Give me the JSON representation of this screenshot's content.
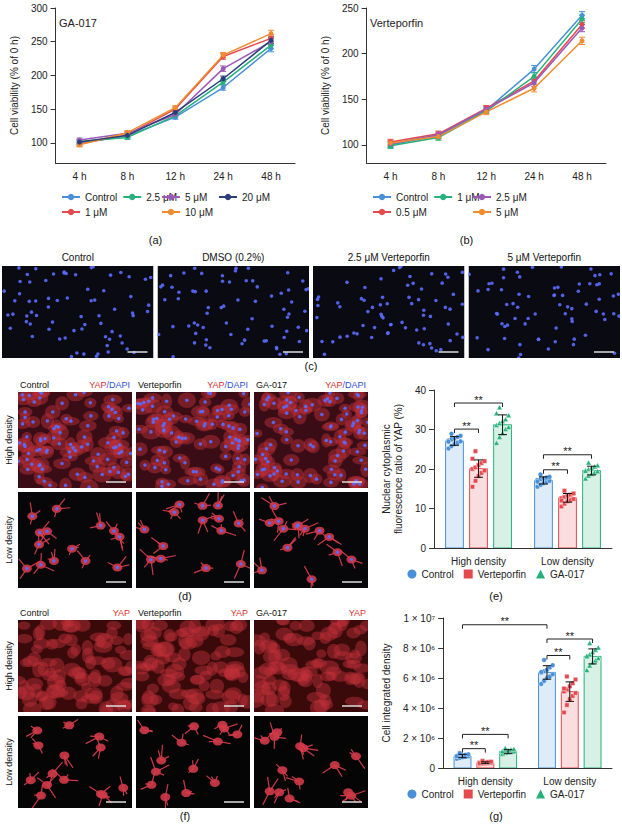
{
  "chart_data": [
    {
      "panel": "(a)",
      "type": "line",
      "title": "GA-017",
      "y_label": "Cell viability (% of 0 h)",
      "categories": [
        "4 h",
        "8 h",
        "12 h",
        "24 h",
        "48 h"
      ],
      "ylim": [
        70,
        300
      ],
      "yticks": [
        100,
        150,
        200,
        250,
        300
      ],
      "grid": false,
      "legend": "bottom",
      "marker": "circle",
      "series": [
        {
          "name": "Control",
          "color": "#4a90d9",
          "values": [
            100,
            110,
            138,
            182,
            240
          ],
          "errors": [
            3,
            3,
            3,
            4,
            5
          ]
        },
        {
          "name": "1 μM",
          "color": "#e5484d",
          "values": [
            98,
            112,
            150,
            228,
            255
          ],
          "errors": [
            3,
            3,
            3,
            4,
            5
          ]
        },
        {
          "name": "2.5 μM",
          "color": "#26b07a",
          "values": [
            102,
            108,
            140,
            190,
            245
          ],
          "errors": [
            3,
            3,
            3,
            4,
            5
          ]
        },
        {
          "name": "5 μM",
          "color": "#9b59b6",
          "values": [
            104,
            114,
            142,
            210,
            250
          ],
          "errors": [
            3,
            3,
            3,
            4,
            5
          ]
        },
        {
          "name": "10 μM",
          "color": "#f08c2e",
          "values": [
            97,
            115,
            152,
            230,
            262
          ],
          "errors": [
            3,
            3,
            3,
            4,
            5
          ]
        },
        {
          "name": "20 μM",
          "color": "#2c3e7a",
          "values": [
            101,
            111,
            145,
            195,
            252
          ],
          "errors": [
            3,
            3,
            3,
            4,
            5
          ]
        }
      ]
    },
    {
      "panel": "(b)",
      "type": "line",
      "title": "Verteporfin",
      "y_label": "Cell viability (% of 0 h)",
      "categories": [
        "4 h",
        "8 h",
        "12 h",
        "24 h",
        "48 h"
      ],
      "ylim": [
        80,
        250
      ],
      "yticks": [
        100,
        150,
        200,
        250
      ],
      "grid": false,
      "legend": "bottom",
      "marker": "circle",
      "series": [
        {
          "name": "Control",
          "color": "#4a90d9",
          "values": [
            100,
            110,
            138,
            183,
            242
          ],
          "errors": [
            3,
            3,
            3,
            4,
            4
          ]
        },
        {
          "name": "0.5 μM",
          "color": "#e5484d",
          "values": [
            103,
            112,
            140,
            170,
            232
          ],
          "errors": [
            3,
            3,
            3,
            4,
            4
          ]
        },
        {
          "name": "1 μM",
          "color": "#26b07a",
          "values": [
            99,
            108,
            137,
            175,
            238
          ],
          "errors": [
            3,
            3,
            3,
            4,
            4
          ]
        },
        {
          "name": "2.5 μM",
          "color": "#9b59b6",
          "values": [
            101,
            111,
            139,
            168,
            228
          ],
          "errors": [
            3,
            3,
            3,
            4,
            4
          ]
        },
        {
          "name": "5 μM",
          "color": "#f08c2e",
          "values": [
            102,
            109,
            136,
            162,
            214
          ],
          "errors": [
            3,
            3,
            3,
            4,
            4
          ]
        }
      ]
    },
    {
      "panel": "(e)",
      "type": "bar",
      "y_label": "Nuclear cytoplasmic fluorescence ratio of YAP (%)",
      "categories": [
        "High density",
        "Low density"
      ],
      "ylim": [
        0,
        40
      ],
      "yticks": [
        0,
        10,
        20,
        30,
        40
      ],
      "grid": false,
      "legend": "bottom",
      "series": [
        {
          "name": "Control",
          "color": "#4a90d9",
          "marker": "circle",
          "values": [
            27.1,
            17.1
          ],
          "errors": [
            1.1,
            0.9
          ],
          "points": [
            [
              25.2,
              25.8,
              26.3,
              26.6,
              27.0,
              27.2,
              27.5,
              27.8,
              28.1,
              28.4,
              26.9,
              28.9
            ],
            [
              15.5,
              16.0,
              16.4,
              16.7,
              17.0,
              17.2,
              17.4,
              17.6,
              17.8,
              18.0,
              16.8,
              18.6
            ]
          ]
        },
        {
          "name": "Verteporfin",
          "color": "#e5484d",
          "marker": "square",
          "values": [
            20.1,
            12.7
          ],
          "errors": [
            2.2,
            1.1
          ],
          "points": [
            [
              15.5,
              17.0,
              18.2,
              19.0,
              19.6,
              20.0,
              20.4,
              21.0,
              21.5,
              22.0,
              22.6,
              24.5
            ],
            [
              10.5,
              11.2,
              11.8,
              12.1,
              12.4,
              12.6,
              12.9,
              13.2,
              13.5,
              13.8,
              12.0,
              14.5
            ]
          ]
        },
        {
          "name": "GA-017",
          "color": "#26b07a",
          "marker": "triangle",
          "values": [
            31.2,
            19.6
          ],
          "errors": [
            2.5,
            1.1
          ],
          "points": [
            [
              26.5,
              28.0,
              29.0,
              30.0,
              30.5,
              31.0,
              31.5,
              32.0,
              32.5,
              33.5,
              34.0,
              35.5
            ],
            [
              17.5,
              18.2,
              18.7,
              19.0,
              19.3,
              19.6,
              19.9,
              20.2,
              20.5,
              20.8,
              19.4,
              21.5
            ]
          ]
        }
      ],
      "comparisons": [
        {
          "from": {
            "category": "High density",
            "series": "Control"
          },
          "to": {
            "category": "High density",
            "series": "Verteporfin"
          },
          "label": "**"
        },
        {
          "from": {
            "category": "High density",
            "series": "Control"
          },
          "to": {
            "category": "High density",
            "series": "GA-017"
          },
          "label": "**"
        },
        {
          "from": {
            "category": "Low density",
            "series": "Control"
          },
          "to": {
            "category": "Low density",
            "series": "Verteporfin"
          },
          "label": "**"
        },
        {
          "from": {
            "category": "Low density",
            "series": "Control"
          },
          "to": {
            "category": "Low density",
            "series": "GA-017"
          },
          "label": "**"
        }
      ]
    },
    {
      "panel": "(g)",
      "type": "bar",
      "y_label": "Cell integrated density",
      "categories": [
        "High density",
        "Low density"
      ],
      "ylim": [
        0,
        10000000
      ],
      "yticks": [
        0,
        {
          "value": 2000000,
          "label": "2 × 10⁶"
        },
        {
          "value": 4000000,
          "label": "4 × 10⁶"
        },
        {
          "value": 6000000,
          "label": "6 × 10⁶"
        },
        {
          "value": 8000000,
          "label": "8 × 10⁶"
        },
        {
          "value": 10000000,
          "label": "1 × 10⁷"
        }
      ],
      "grid": false,
      "legend": "bottom",
      "series": [
        {
          "name": "Control",
          "color": "#4a90d9",
          "marker": "circle",
          "values": [
            800000,
            6370000
          ],
          "errors": [
            110000,
            450000
          ],
          "points": [
            [
              620000,
              680000,
              720000,
              750000,
              780000,
              800000,
              820000,
              850000,
              880000,
              910000,
              790000,
              990000
            ],
            [
              5600000,
              5800000,
              6000000,
              6100000,
              6250000,
              6350000,
              6450000,
              6550000,
              6700000,
              6850000,
              6400000,
              7200000
            ]
          ]
        },
        {
          "name": "Verteporfin",
          "color": "#e5484d",
          "marker": "square",
          "values": [
            350000,
            5090000
          ],
          "errors": [
            60000,
            650000
          ],
          "points": [
            [
              250000,
              280000,
              300000,
              320000,
              340000,
              350000,
              360000,
              380000,
              400000,
              420000,
              330000,
              470000
            ],
            [
              3700000,
              4200000,
              4600000,
              4800000,
              5000000,
              5100000,
              5250000,
              5450000,
              5650000,
              5900000,
              5300000,
              6100000
            ]
          ]
        },
        {
          "name": "GA-017",
          "color": "#26b07a",
          "marker": "triangle",
          "values": [
            1100000,
            7440000
          ],
          "errors": [
            120000,
            500000
          ],
          "points": [
            [
              900000,
              960000,
              1000000,
              1040000,
              1080000,
              1100000,
              1130000,
              1160000,
              1200000,
              1240000,
              1090000,
              1300000
            ],
            [
              6500000,
              6800000,
              7000000,
              7150000,
              7300000,
              7400000,
              7550000,
              7700000,
              7850000,
              8000000,
              7450000,
              8300000
            ]
          ]
        }
      ],
      "comparisons": [
        {
          "from": {
            "category": "High density",
            "series": "Control"
          },
          "to": {
            "category": "High density",
            "series": "Verteporfin"
          },
          "label": "**"
        },
        {
          "from": {
            "category": "High density",
            "series": "Control"
          },
          "to": {
            "category": "High density",
            "series": "GA-017"
          },
          "label": "**"
        },
        {
          "from": {
            "category": "Low density",
            "series": "Control"
          },
          "to": {
            "category": "Low density",
            "series": "Verteporfin"
          },
          "label": "**"
        },
        {
          "from": {
            "category": "Low density",
            "series": "Control"
          },
          "to": {
            "category": "Low density",
            "series": "GA-017"
          },
          "label": "**"
        },
        {
          "from": {
            "category": "High density",
            "series": "Control"
          },
          "to": {
            "category": "Low density",
            "series": "Control"
          },
          "label": "**"
        }
      ]
    }
  ],
  "image_panels": [
    {
      "panel": "(c)",
      "columns": [
        "Control",
        "DMSO (0.2%)",
        "2.5 μM Verteporfin",
        "5 μM Verteporfin"
      ]
    },
    {
      "panel": "(d)",
      "columns": [
        "Control",
        "Verteporfin",
        "GA-017"
      ],
      "stain": "YAP/DAPI",
      "rows": [
        "High density",
        "Low density"
      ]
    },
    {
      "panel": "(f)",
      "columns": [
        "Control",
        "Verteporfin",
        "GA-017"
      ],
      "stain": "YAP",
      "rows": [
        "High density",
        "Low density"
      ]
    }
  ]
}
